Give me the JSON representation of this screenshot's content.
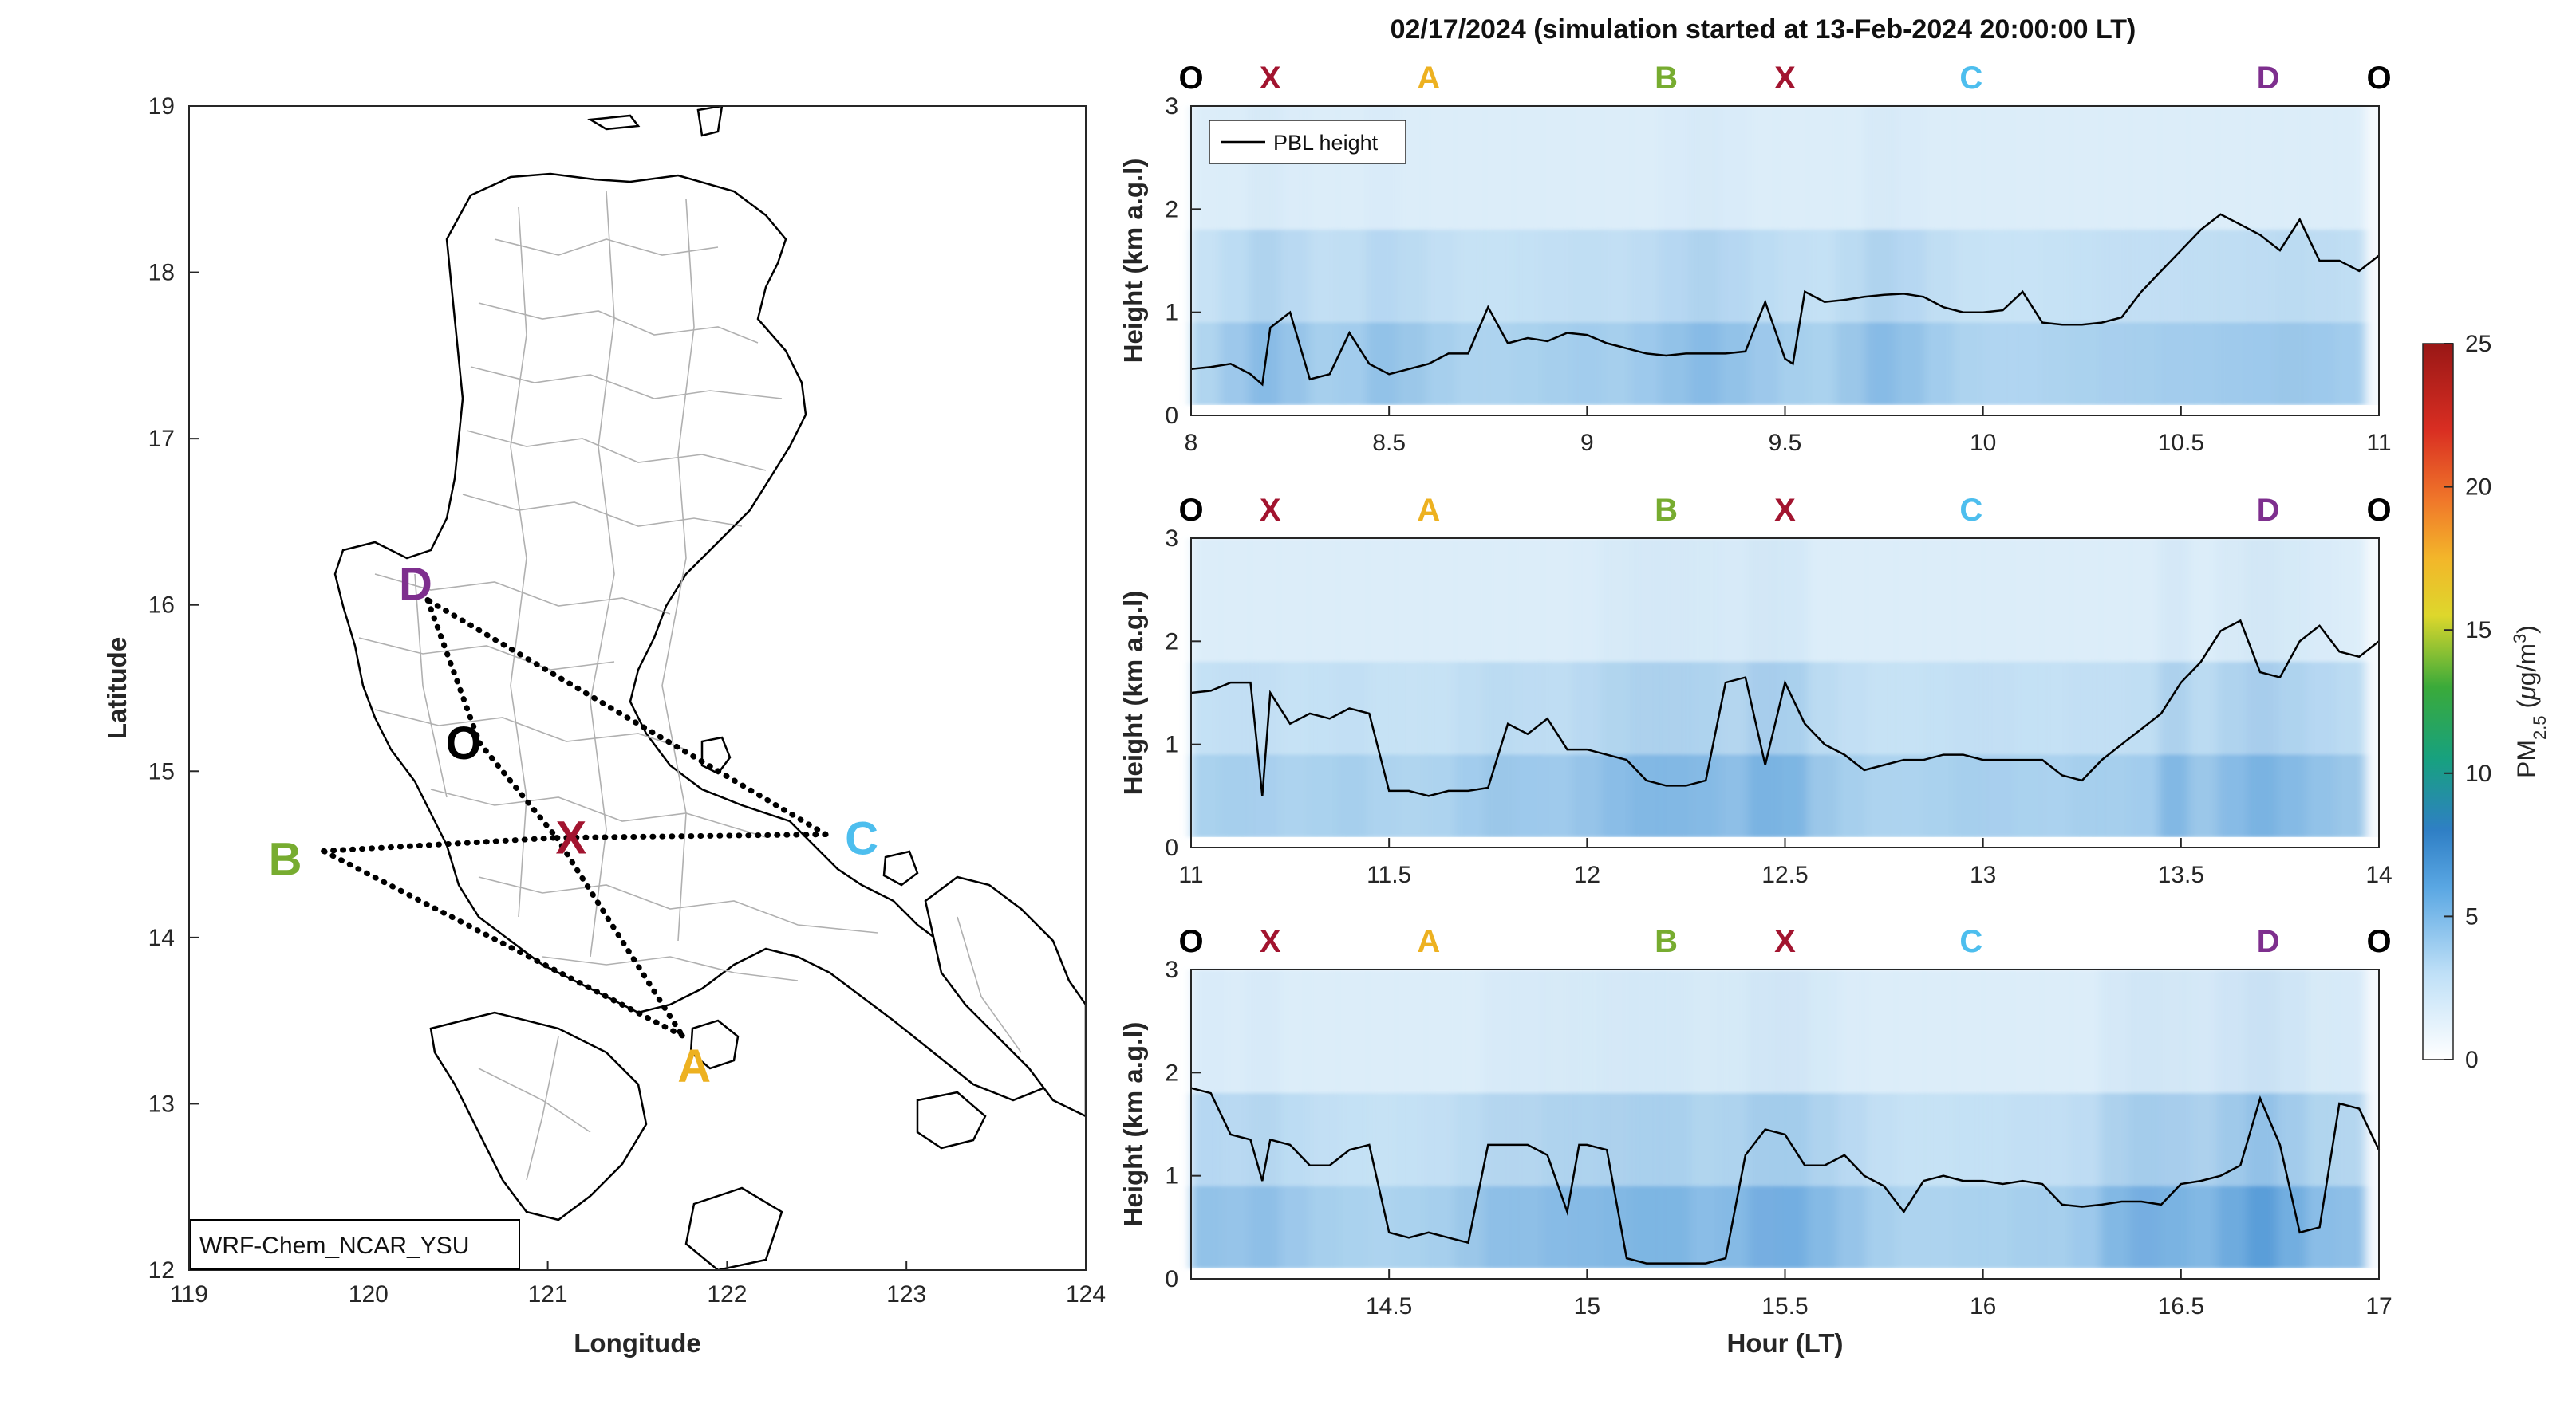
{
  "colors": {
    "O": "#000000",
    "X": "#a2142f",
    "A": "#edb120",
    "B": "#77ac30",
    "C": "#4dbeee",
    "D": "#7e2f8e",
    "pbl": "#000000",
    "route": "#000000"
  },
  "chart_data": [
    {
      "type": "map",
      "xlabel": "Longitude",
      "ylabel": "Latitude",
      "xlim": [
        119,
        124
      ],
      "ylim": [
        12,
        19
      ],
      "xticks": [
        "119",
        "120",
        "121",
        "122",
        "123",
        "124"
      ],
      "yticks": [
        "12",
        "13",
        "14",
        "15",
        "16",
        "17",
        "18",
        "19"
      ],
      "model_label": "WRF-Chem_NCAR_YSU",
      "waypoints": [
        {
          "name": "O",
          "lon": 120.62,
          "lat": 15.17
        },
        {
          "name": "X",
          "lon": 121.05,
          "lat": 14.6
        },
        {
          "name": "A",
          "lon": 121.75,
          "lat": 13.41
        },
        {
          "name": "B",
          "lon": 119.75,
          "lat": 14.52
        },
        {
          "name": "C",
          "lon": 122.55,
          "lat": 14.62
        },
        {
          "name": "D",
          "lon": 120.33,
          "lat": 16.03
        }
      ],
      "route_segments": [
        [
          "D",
          "O"
        ],
        [
          "O",
          "X"
        ],
        [
          "X",
          "A"
        ],
        [
          "A",
          "B"
        ],
        [
          "B",
          "X"
        ],
        [
          "X",
          "C"
        ],
        [
          "C",
          "D"
        ]
      ]
    },
    {
      "type": "heatmap",
      "title": "02/17/2024 (simulation started at 13-Feb-2024 20:00:00 LT)",
      "ylabel": "Height (km a.g.l)",
      "ylim": [
        0,
        3
      ],
      "yticks": [
        "0",
        "1",
        "2",
        "3"
      ],
      "xlim": [
        8,
        11
      ],
      "xticks": [
        "8",
        "8.5",
        "9",
        "9.5",
        "10",
        "10.5",
        "11"
      ],
      "top_labels": [
        {
          "label": "O",
          "x": 8.0
        },
        {
          "label": "X",
          "x": 8.2
        },
        {
          "label": "A",
          "x": 8.6
        },
        {
          "label": "B",
          "x": 9.2
        },
        {
          "label": "X",
          "x": 9.5
        },
        {
          "label": "C",
          "x": 9.97
        },
        {
          "label": "D",
          "x": 10.72
        },
        {
          "label": "O",
          "x": 11.0
        }
      ],
      "legend": "PBL height",
      "pbl_height_km": {
        "x": [
          8.0,
          8.05,
          8.1,
          8.15,
          8.18,
          8.2,
          8.25,
          8.3,
          8.35,
          8.4,
          8.45,
          8.5,
          8.55,
          8.6,
          8.65,
          8.7,
          8.75,
          8.8,
          8.85,
          8.9,
          8.95,
          9.0,
          9.05,
          9.1,
          9.15,
          9.2,
          9.25,
          9.3,
          9.35,
          9.4,
          9.45,
          9.5,
          9.52,
          9.55,
          9.6,
          9.65,
          9.7,
          9.75,
          9.8,
          9.85,
          9.9,
          9.95,
          10.0,
          10.05,
          10.1,
          10.15,
          10.2,
          10.25,
          10.3,
          10.35,
          10.4,
          10.45,
          10.5,
          10.55,
          10.6,
          10.65,
          10.7,
          10.75,
          10.8,
          10.85,
          10.9,
          10.95,
          11.0
        ],
        "y": [
          0.45,
          0.47,
          0.5,
          0.4,
          0.3,
          0.85,
          1.0,
          0.35,
          0.4,
          0.8,
          0.5,
          0.4,
          0.45,
          0.5,
          0.6,
          0.6,
          1.05,
          0.7,
          0.75,
          0.72,
          0.8,
          0.78,
          0.7,
          0.65,
          0.6,
          0.58,
          0.6,
          0.6,
          0.6,
          0.62,
          1.1,
          0.55,
          0.5,
          1.2,
          1.1,
          1.12,
          1.15,
          1.17,
          1.18,
          1.15,
          1.05,
          1.0,
          1.0,
          1.02,
          1.2,
          0.9,
          0.88,
          0.88,
          0.9,
          0.95,
          1.2,
          1.4,
          1.6,
          1.8,
          1.95,
          1.85,
          1.75,
          1.6,
          1.9,
          1.5,
          1.5,
          1.4,
          1.55
        ]
      },
      "pm25_intensity": [
        3.5,
        4.5,
        5.5,
        4.8,
        4.0,
        4.2,
        5.0,
        4.6,
        4.0,
        3.6,
        3.6,
        3.8,
        4.0,
        4.2,
        4.0,
        4.4,
        5.0,
        5.5,
        5.0,
        4.5,
        4.0,
        3.8,
        4.6,
        5.5,
        5.0,
        4.2,
        3.6,
        3.4,
        3.4,
        3.6,
        3.8,
        3.9,
        4.0,
        4.1,
        4.2,
        4.3,
        4.4,
        4.6,
        4.4,
        4.2
      ]
    },
    {
      "type": "heatmap",
      "ylabel": "Height (km a.g.l)",
      "ylim": [
        0,
        3
      ],
      "yticks": [
        "0",
        "1",
        "2",
        "3"
      ],
      "xlim": [
        11,
        14
      ],
      "xticks": [
        "11",
        "11.5",
        "12",
        "12.5",
        "13",
        "13.5",
        "14"
      ],
      "top_labels": [
        {
          "label": "O",
          "x": 11.0
        },
        {
          "label": "X",
          "x": 11.2
        },
        {
          "label": "A",
          "x": 11.6
        },
        {
          "label": "B",
          "x": 12.2
        },
        {
          "label": "X",
          "x": 12.5
        },
        {
          "label": "C",
          "x": 12.97
        },
        {
          "label": "D",
          "x": 13.72
        },
        {
          "label": "O",
          "x": 14.0
        }
      ],
      "pbl_height_km": {
        "x": [
          11.0,
          11.05,
          11.1,
          11.15,
          11.18,
          11.2,
          11.25,
          11.3,
          11.35,
          11.4,
          11.45,
          11.5,
          11.55,
          11.6,
          11.65,
          11.7,
          11.75,
          11.8,
          11.85,
          11.9,
          11.95,
          12.0,
          12.05,
          12.1,
          12.15,
          12.2,
          12.25,
          12.3,
          12.35,
          12.4,
          12.45,
          12.5,
          12.55,
          12.6,
          12.65,
          12.7,
          12.75,
          12.8,
          12.85,
          12.9,
          12.95,
          13.0,
          13.05,
          13.1,
          13.15,
          13.2,
          13.25,
          13.3,
          13.35,
          13.4,
          13.45,
          13.5,
          13.55,
          13.6,
          13.65,
          13.7,
          13.75,
          13.8,
          13.85,
          13.9,
          13.95,
          14.0
        ],
        "y": [
          1.5,
          1.52,
          1.6,
          1.6,
          0.5,
          1.5,
          1.2,
          1.3,
          1.25,
          1.35,
          1.3,
          0.55,
          0.55,
          0.5,
          0.55,
          0.55,
          0.58,
          1.2,
          1.1,
          1.25,
          0.95,
          0.95,
          0.9,
          0.85,
          0.65,
          0.6,
          0.6,
          0.65,
          1.6,
          1.65,
          0.8,
          1.6,
          1.2,
          1.0,
          0.9,
          0.75,
          0.8,
          0.85,
          0.85,
          0.9,
          0.9,
          0.85,
          0.85,
          0.85,
          0.85,
          0.7,
          0.65,
          0.85,
          1.0,
          1.15,
          1.3,
          1.6,
          1.8,
          2.1,
          2.2,
          1.7,
          1.65,
          2.0,
          2.15,
          1.9,
          1.85,
          2.0
        ]
      },
      "pm25_intensity": [
        3.8,
        4.0,
        3.9,
        3.6,
        3.8,
        4.0,
        3.6,
        3.5,
        3.6,
        4.2,
        4.6,
        4.4,
        4.3,
        4.8,
        5.4,
        5.8,
        5.8,
        5.6,
        5.2,
        6.2,
        6.0,
        4.6,
        4.0,
        3.6,
        3.6,
        3.8,
        4.0,
        3.9,
        3.8,
        3.7,
        4.0,
        4.0,
        4.2,
        5.8,
        4.6,
        5.5,
        6.2,
        5.6,
        5.0,
        4.6
      ]
    },
    {
      "type": "heatmap",
      "ylabel": "Height (km a.g.l)",
      "xlabel": "Hour (LT)",
      "ylim": [
        0,
        3
      ],
      "yticks": [
        "0",
        "1",
        "2",
        "3"
      ],
      "xlim": [
        14,
        17
      ],
      "xticks": [
        "14.5",
        "15",
        "15.5",
        "16",
        "16.5",
        "17"
      ],
      "top_labels": [
        {
          "label": "O",
          "x": 14.0
        },
        {
          "label": "X",
          "x": 14.2
        },
        {
          "label": "A",
          "x": 14.6
        },
        {
          "label": "B",
          "x": 15.2
        },
        {
          "label": "X",
          "x": 15.5
        },
        {
          "label": "C",
          "x": 15.97
        },
        {
          "label": "D",
          "x": 16.72
        },
        {
          "label": "O",
          "x": 17.0
        }
      ],
      "pbl_height_km": {
        "x": [
          14.0,
          14.05,
          14.1,
          14.15,
          14.18,
          14.2,
          14.25,
          14.3,
          14.35,
          14.4,
          14.45,
          14.5,
          14.55,
          14.6,
          14.65,
          14.7,
          14.75,
          14.8,
          14.85,
          14.9,
          14.95,
          14.98,
          15.0,
          15.05,
          15.1,
          15.15,
          15.2,
          15.25,
          15.3,
          15.35,
          15.4,
          15.45,
          15.5,
          15.55,
          15.6,
          15.65,
          15.7,
          15.75,
          15.8,
          15.85,
          15.9,
          15.95,
          16.0,
          16.05,
          16.1,
          16.15,
          16.2,
          16.25,
          16.3,
          16.35,
          16.4,
          16.45,
          16.5,
          16.55,
          16.6,
          16.65,
          16.7,
          16.75,
          16.8,
          16.85,
          16.9,
          16.95,
          17.0
        ],
        "y": [
          1.85,
          1.8,
          1.4,
          1.35,
          0.95,
          1.35,
          1.3,
          1.1,
          1.1,
          1.25,
          1.3,
          0.45,
          0.4,
          0.45,
          0.4,
          0.35,
          1.3,
          1.3,
          1.3,
          1.2,
          0.65,
          1.3,
          1.3,
          1.25,
          0.2,
          0.15,
          0.15,
          0.15,
          0.15,
          0.2,
          1.2,
          1.45,
          1.4,
          1.1,
          1.1,
          1.2,
          1.0,
          0.9,
          0.65,
          0.95,
          1.0,
          0.95,
          0.95,
          0.92,
          0.95,
          0.92,
          0.72,
          0.7,
          0.72,
          0.75,
          0.75,
          0.72,
          0.92,
          0.95,
          1.0,
          1.1,
          1.75,
          1.3,
          0.45,
          0.5,
          1.7,
          1.65,
          1.25
        ]
      },
      "pm25_intensity": [
        5.0,
        4.8,
        5.2,
        4.5,
        4.0,
        3.8,
        3.6,
        3.8,
        4.0,
        4.6,
        5.2,
        5.2,
        5.5,
        5.6,
        5.8,
        6.0,
        6.0,
        5.4,
        5.6,
        6.4,
        6.5,
        5.6,
        4.8,
        4.0,
        3.6,
        3.6,
        3.8,
        3.8,
        4.0,
        4.0,
        4.4,
        5.8,
        6.4,
        6.2,
        5.8,
        6.8,
        7.8,
        6.6,
        5.4,
        5.2
      ]
    },
    {
      "type": "colorbar",
      "label_main": "PM",
      "label_sub": "2.5",
      "label_units_pre": " (",
      "label_mu": "μ",
      "label_units_post": "g/m",
      "label_sup": "3",
      "label_close": ")",
      "range": [
        0,
        25
      ],
      "ticks": [
        "0",
        "5",
        "10",
        "15",
        "20",
        "25"
      ]
    }
  ]
}
